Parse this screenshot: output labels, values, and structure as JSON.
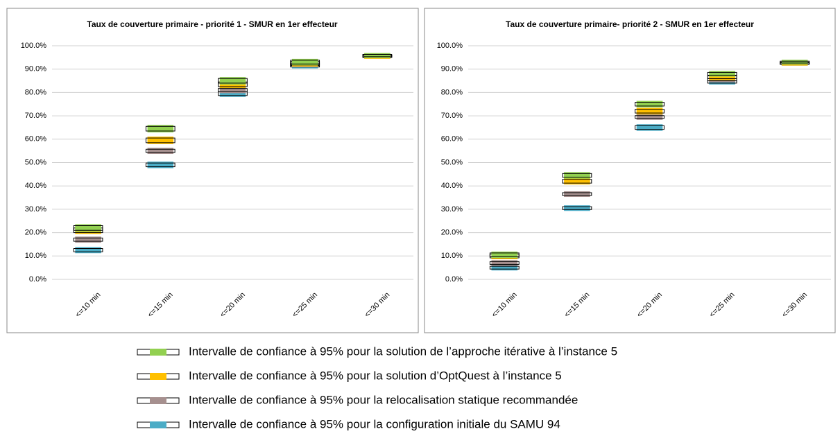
{
  "chart_data": [
    {
      "type": "ci_box",
      "title": "Taux de couverture primaire - priorité 1 - SMUR en 1er effecteur",
      "categories": [
        "<=10 min",
        "<=15 min",
        "<=20 min",
        "<=25 min",
        "<=30 min"
      ],
      "ylim": [
        0,
        100
      ],
      "yticks": [
        {
          "value": 0,
          "label": "0.0%"
        },
        {
          "value": 10,
          "label": "10.0%"
        },
        {
          "value": 20,
          "label": "20.0%"
        },
        {
          "value": 30,
          "label": "30.0%"
        },
        {
          "value": 40,
          "label": "40.0%"
        },
        {
          "value": 50,
          "label": "50.0%"
        },
        {
          "value": 60,
          "label": "60.0%"
        },
        {
          "value": 70,
          "label": "70.0%"
        },
        {
          "value": 80,
          "label": "80.0%"
        },
        {
          "value": 90,
          "label": "90.0%"
        },
        {
          "value": 100,
          "label": "100.0%"
        }
      ],
      "grid": true,
      "series": [
        {
          "name": "Intervalle de confiance à 95%  pour la solution de l’approche itérative à l’instance 5",
          "color": "#92d050",
          "values": [
            22,
            64.5,
            85,
            93,
            95.8
          ],
          "errors": [
            1,
            1,
            1,
            0.8,
            0.5
          ]
        },
        {
          "name": "Intervalle de confiance à 95%  pour la solution d’OptQuest à l’instance 5",
          "color": "#ffc000",
          "values": [
            21,
            59.5,
            83.5,
            92.5,
            95.5
          ],
          "errors": [
            1,
            1,
            1,
            0.8,
            0.5
          ]
        },
        {
          "name": "Intervalle de confiance à 95%  pour la relocalisation statique recommandée",
          "color": "#a6908f",
          "values": [
            17,
            55,
            81,
            92,
            95.5
          ],
          "errors": [
            0.7,
            0.7,
            0.7,
            0.6,
            0.4
          ]
        },
        {
          "name": "Intervalle de confiance à 95%  pour la configuration initiale du SAMU 94",
          "color": "#4bacc6",
          "values": [
            12.5,
            49,
            79.5,
            91.5,
            95.5
          ],
          "errors": [
            0.7,
            0.8,
            0.8,
            0.6,
            0.4
          ]
        }
      ]
    },
    {
      "type": "ci_box",
      "title": "Taux de couverture primaire- priorité 2 - SMUR en 1er effecteur",
      "categories": [
        "<=10 min",
        "<=15 min",
        "<=20 min",
        "<=25 min",
        "<=30 min"
      ],
      "ylim": [
        0,
        100
      ],
      "yticks": [
        {
          "value": 0,
          "label": "0.0%"
        },
        {
          "value": 10,
          "label": "10.0%"
        },
        {
          "value": 20,
          "label": "20.0%"
        },
        {
          "value": 30,
          "label": "30.0%"
        },
        {
          "value": 40,
          "label": "40.0%"
        },
        {
          "value": 50,
          "label": "50.0%"
        },
        {
          "value": 60,
          "label": "60.0%"
        },
        {
          "value": 70,
          "label": "70.0%"
        },
        {
          "value": 80,
          "label": "80.0%"
        },
        {
          "value": 90,
          "label": "90.0%"
        },
        {
          "value": 100,
          "label": "100.0%"
        }
      ],
      "grid": true,
      "series": [
        {
          "color": "#92d050",
          "values": [
            10.5,
            44.5,
            75,
            88,
            93
          ],
          "errors": [
            0.8,
            0.8,
            0.8,
            0.6,
            0.4
          ]
        },
        {
          "color": "#ffc000",
          "values": [
            10,
            42,
            72,
            86.5,
            92.5
          ],
          "errors": [
            0.8,
            0.8,
            0.8,
            0.6,
            0.4
          ]
        },
        {
          "color": "#a6908f",
          "values": [
            7,
            36.5,
            69.5,
            85.5,
            92.5
          ],
          "errors": [
            0.6,
            0.6,
            0.6,
            0.5,
            0.4
          ]
        },
        {
          "color": "#4bacc6",
          "values": [
            5,
            30.5,
            65,
            84.5,
            92.5
          ],
          "errors": [
            0.6,
            0.6,
            0.8,
            0.5,
            0.4
          ]
        }
      ]
    }
  ]
}
